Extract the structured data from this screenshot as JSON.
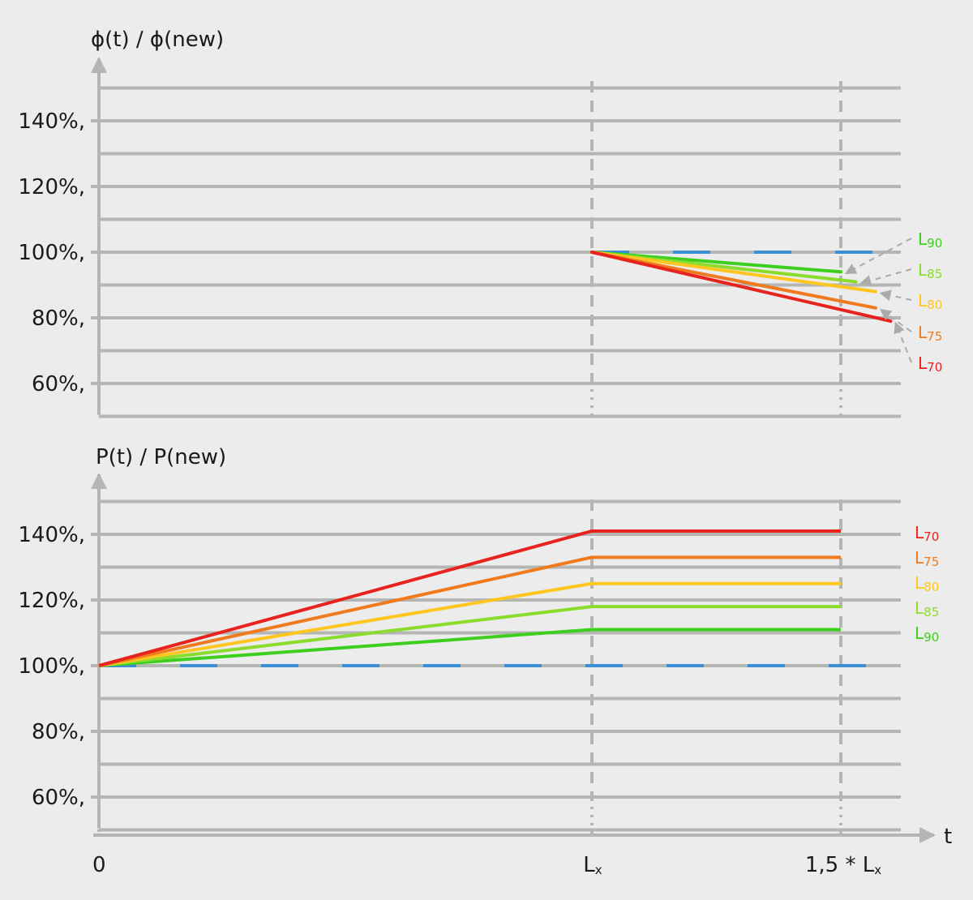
{
  "chart_data": [
    {
      "type": "line",
      "title": "",
      "ylabel": "ϕ(t) / ϕ(new)",
      "xlabel": "",
      "y_ticks": [
        "140%,",
        "120%,",
        "100%,",
        "80%,",
        "60%,"
      ],
      "x_ticks": [
        "0",
        "Lx",
        "1,5 * Lx"
      ],
      "x": [
        0,
        1,
        1.5
      ],
      "reference": {
        "style": "dashed",
        "color": "#3a8fd6",
        "value": 100,
        "x_start": 1
      },
      "gradient_segment": {
        "x": [
          0,
          1
        ],
        "values": [
          100,
          100
        ],
        "colors": [
          "#e8231e",
          "#f07a1e",
          "#ffc61f",
          "#8cdc2e",
          "#3ccf1e"
        ]
      },
      "series": [
        {
          "name": "L90",
          "color": "#3ccf1e",
          "x": [
            1,
            1.5
          ],
          "values": [
            100,
            94
          ]
        },
        {
          "name": "L85",
          "color": "#8cdc2e",
          "x": [
            1,
            1.53
          ],
          "values": [
            100,
            91
          ]
        },
        {
          "name": "L80",
          "color": "#ffc61f",
          "x": [
            1,
            1.57
          ],
          "values": [
            100,
            88
          ]
        },
        {
          "name": "L75",
          "color": "#f07a1e",
          "x": [
            1,
            1.57
          ],
          "values": [
            100,
            83
          ]
        },
        {
          "name": "L70",
          "color": "#e8231e",
          "x": [
            1,
            1.6
          ],
          "values": [
            100,
            79
          ]
        }
      ],
      "legend": {
        "placement": "right",
        "order": [
          "L90",
          "L85",
          "L80",
          "L75",
          "L70"
        ],
        "connector": "dashed-arrows"
      }
    },
    {
      "type": "line",
      "title": "",
      "ylabel": "P(t) / P(new)",
      "xlabel": "t",
      "y_ticks": [
        "140%,",
        "120%,",
        "100%,",
        "80%,",
        "60%,"
      ],
      "x_ticks": [
        "0",
        "Lx",
        "1,5 * Lx"
      ],
      "x": [
        0,
        1,
        1.5
      ],
      "reference": {
        "style": "dashed",
        "color": "#3a8fd6",
        "value": 100,
        "x_start": 0
      },
      "series": [
        {
          "name": "L70",
          "color": "#e8231e",
          "values": [
            100,
            141,
            141
          ]
        },
        {
          "name": "L75",
          "color": "#f07a1e",
          "values": [
            100,
            133,
            133
          ]
        },
        {
          "name": "L80",
          "color": "#ffc61f",
          "values": [
            100,
            125,
            125
          ]
        },
        {
          "name": "L85",
          "color": "#8cdc2e",
          "values": [
            100,
            118,
            118
          ]
        },
        {
          "name": "L90",
          "color": "#3ccf1e",
          "values": [
            100,
            111,
            111
          ]
        }
      ],
      "legend": {
        "placement": "right",
        "order": [
          "L70",
          "L75",
          "L80",
          "L85",
          "L90"
        ]
      }
    }
  ],
  "legend_labels": {
    "L90": {
      "letter": "L",
      "sub": "90"
    },
    "L85": {
      "letter": "L",
      "sub": "85"
    },
    "L80": {
      "letter": "L",
      "sub": "80"
    },
    "L75": {
      "letter": "L",
      "sub": "75"
    },
    "L70": {
      "letter": "L",
      "sub": "70"
    }
  }
}
